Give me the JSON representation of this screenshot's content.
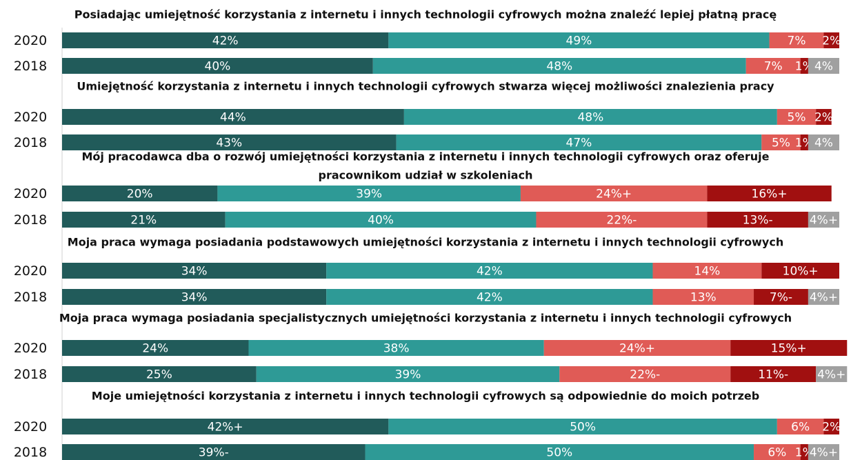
{
  "chart_data": {
    "type": "stacked-bar",
    "orientation": "horizontal",
    "xlim": [
      0,
      100
    ],
    "colors": [
      "#215b5a",
      "#2e9a96",
      "#e05b56",
      "#a11010",
      "#a0a0a0"
    ],
    "groups": [
      {
        "title": "Posiadając umiejętność korzystania z internetu i innych technologii cyfrowych można znaleźć lepiej płatną pracę",
        "bars": [
          {
            "label": "2020",
            "values": [
              42,
              49,
              7,
              2
            ],
            "value_labels": [
              "42%",
              "49%",
              "7%",
              "2%"
            ]
          },
          {
            "label": "2018",
            "values": [
              40,
              48,
              7,
              1,
              4
            ],
            "value_labels": [
              "40%",
              "48%",
              "7%",
              "1%",
              "4%"
            ]
          }
        ]
      },
      {
        "title": "Umiejętność korzystania z internetu i innych technologii cyfrowych stwarza więcej możliwości znalezienia pracy",
        "bars": [
          {
            "label": "2020",
            "values": [
              44,
              48,
              5,
              2
            ],
            "value_labels": [
              "44%",
              "48%",
              "5%",
              "2%"
            ]
          },
          {
            "label": "2018",
            "values": [
              43,
              47,
              5,
              1,
              4
            ],
            "value_labels": [
              "43%",
              "47%",
              "5%",
              "1%",
              "4%"
            ]
          }
        ]
      },
      {
        "title": [
          "Mój pracodawca dba o rozwój umiejętności korzystania z internetu i innych technologii cyfrowych oraz oferuje",
          "pracownikom udział w szkoleniach"
        ],
        "bars": [
          {
            "label": "2020",
            "values": [
              20,
              39,
              24,
              16
            ],
            "value_labels": [
              "20%",
              "39%",
              "24%+",
              "16%+"
            ]
          },
          {
            "label": "2018",
            "values": [
              21,
              40,
              22,
              13,
              4
            ],
            "value_labels": [
              "21%",
              "40%",
              "22%-",
              "13%-",
              "4%+"
            ]
          }
        ]
      },
      {
        "title": "Moja praca wymaga posiadania podstawowych umiejętności korzystania z internetu i innych technologii cyfrowych",
        "bars": [
          {
            "label": "2020",
            "values": [
              34,
              42,
              14,
              10
            ],
            "value_labels": [
              "34%",
              "42%",
              "14%",
              "10%+"
            ]
          },
          {
            "label": "2018",
            "values": [
              34,
              42,
              13,
              7,
              4
            ],
            "value_labels": [
              "34%",
              "42%",
              "13%",
              "7%-",
              "4%+"
            ]
          }
        ]
      },
      {
        "title": "Moja praca wymaga posiadania specjalistycznych umiejętności korzystania z internetu i innych technologii cyfrowych",
        "bars": [
          {
            "label": "2020",
            "values": [
              24,
              38,
              24,
              15
            ],
            "value_labels": [
              "24%",
              "38%",
              "24%+",
              "15%+"
            ]
          },
          {
            "label": "2018",
            "values": [
              25,
              39,
              22,
              11,
              4
            ],
            "value_labels": [
              "25%",
              "39%",
              "22%-",
              "11%-",
              "4%+"
            ]
          }
        ]
      },
      {
        "title": "Moje umiejętności korzystania z internetu i innych technologii cyfrowych są odpowiednie do moich potrzeb",
        "bars": [
          {
            "label": "2020",
            "values": [
              42,
              50,
              6,
              2
            ],
            "value_labels": [
              "42%+",
              "50%",
              "6%",
              "2%"
            ]
          },
          {
            "label": "2018",
            "values": [
              39,
              50,
              6,
              1,
              4
            ],
            "value_labels": [
              "39%-",
              "50%",
              "6%",
              "1%",
              "4%+"
            ]
          }
        ]
      }
    ]
  }
}
